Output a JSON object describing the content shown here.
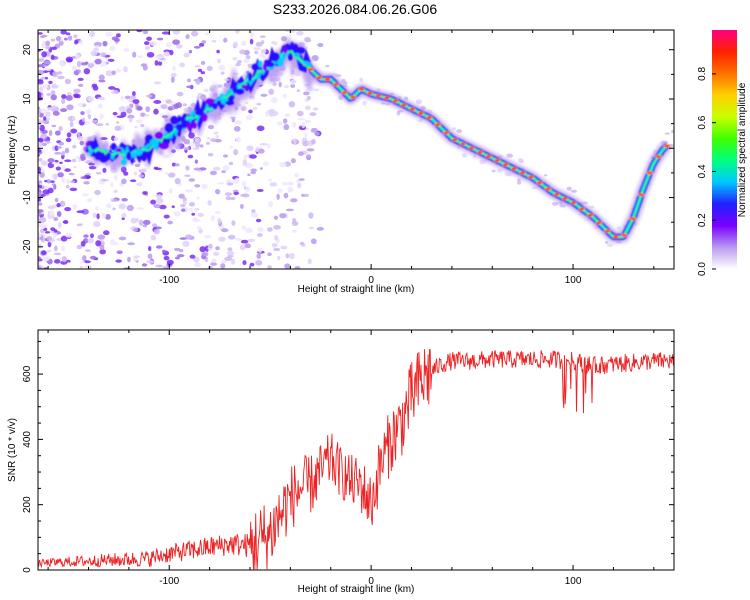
{
  "title": "S233.2026.084.06.26.G06",
  "chart_data": [
    {
      "type": "heatmap",
      "xlabel": "Height of straight line (km)",
      "ylabel": "Frequency (Hz)",
      "xlim": [
        -165,
        150
      ],
      "ylim": [
        -24.5,
        24
      ],
      "xticks": [
        -100,
        0,
        100
      ],
      "yticks": [
        -20,
        -10,
        0,
        10,
        20
      ],
      "colorbar": {
        "label": "Normalized spectral amplitude",
        "range": [
          0,
          0.98
        ],
        "ticks": [
          0.0,
          0.2,
          0.4,
          0.6,
          0.8
        ],
        "tick_labels": [
          "0.0",
          "0.2",
          "0.4",
          "0.6",
          "0.8"
        ],
        "colors": [
          "#ffffff",
          "#b89af0",
          "#7a00ff",
          "#2020ff",
          "#00c8ff",
          "#00ff80",
          "#40ff00",
          "#c8ff00",
          "#ffd000",
          "#ff7000",
          "#ff2000",
          "#ff0080"
        ]
      },
      "ridge": {
        "x": [
          -140,
          -130,
          -120,
          -110,
          -100,
          -90,
          -80,
          -70,
          -60,
          -50,
          -40,
          -35,
          -30,
          -25,
          -20,
          -15,
          -10,
          -5,
          0,
          10,
          20,
          30,
          40,
          50,
          60,
          70,
          80,
          90,
          100,
          110,
          115,
          120,
          125,
          130,
          135,
          140,
          145,
          148
        ],
        "y": [
          0,
          -1,
          -1,
          0,
          3,
          6,
          8,
          11,
          14,
          17,
          20,
          18,
          16,
          14,
          14,
          12,
          10,
          12,
          11,
          10,
          8,
          6,
          2,
          0,
          -2,
          -4,
          -6,
          -9,
          -11,
          -14,
          -16,
          -18,
          -18,
          -14,
          -8,
          -3,
          0,
          1
        ]
      }
    },
    {
      "type": "line",
      "xlabel": "Height of straight line (km)",
      "ylabel": "SNR (10 * v/v)",
      "xlim": [
        -165,
        150
      ],
      "ylim": [
        0,
        735
      ],
      "xticks": [
        -100,
        0,
        100
      ],
      "yticks": [
        0,
        200,
        400,
        600
      ],
      "series": [
        {
          "name": "SNR",
          "color": "#ee2222",
          "x": [
            -165,
            -150,
            -130,
            -110,
            -100,
            -90,
            -80,
            -70,
            -60,
            -55,
            -50,
            -45,
            -40,
            -35,
            -30,
            -25,
            -20,
            -15,
            -10,
            -5,
            0,
            5,
            10,
            15,
            20,
            25,
            30,
            35,
            40,
            50,
            60,
            70,
            80,
            90,
            100,
            110,
            120,
            130,
            140,
            150
          ],
          "values": [
            20,
            25,
            30,
            35,
            50,
            60,
            70,
            80,
            75,
            90,
            110,
            170,
            220,
            250,
            260,
            300,
            340,
            300,
            270,
            260,
            200,
            330,
            400,
            450,
            530,
            580,
            610,
            630,
            640,
            640,
            645,
            645,
            645,
            645,
            640,
            625,
            630,
            635,
            640,
            640
          ]
        }
      ]
    }
  ]
}
